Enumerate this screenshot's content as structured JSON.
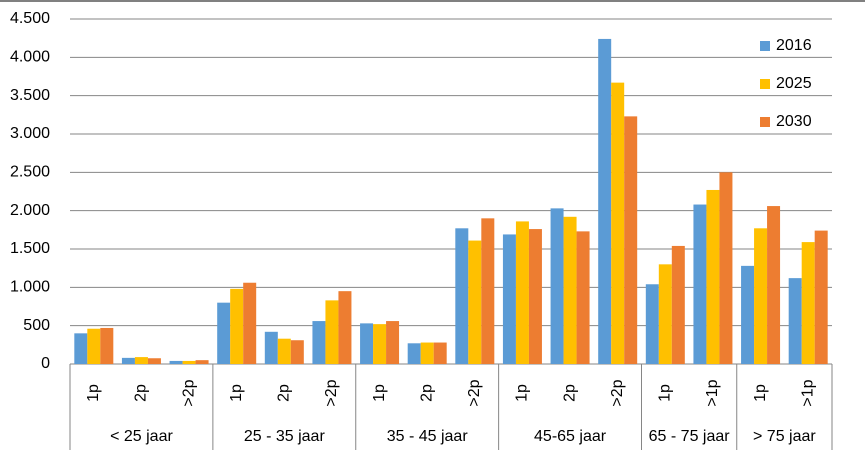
{
  "chart_data": {
    "type": "bar",
    "category_groups": [
      {
        "label": "< 25 jaar",
        "categories": [
          "1p",
          "2p",
          ">2p"
        ]
      },
      {
        "label": "25 - 35 jaar",
        "categories": [
          "1p",
          "2p",
          ">2p"
        ]
      },
      {
        "label": "35 - 45 jaar",
        "categories": [
          "1p",
          "2p",
          ">2p"
        ]
      },
      {
        "label": "45-65 jaar",
        "categories": [
          "1p",
          "2p",
          ">2p"
        ]
      },
      {
        "label": "65 - 75 jaar",
        "categories": [
          "1p",
          ">1p"
        ]
      },
      {
        "label": "> 75 jaar",
        "categories": [
          "1p",
          ">1p"
        ]
      }
    ],
    "series": [
      {
        "name": "2016",
        "color": "#5b9bd5",
        "values": [
          400,
          80,
          40,
          800,
          420,
          560,
          530,
          270,
          1770,
          1690,
          2030,
          4240,
          1040,
          2080,
          1280,
          1120
        ]
      },
      {
        "name": "2025",
        "color": "#ffc000",
        "values": [
          460,
          90,
          40,
          980,
          330,
          830,
          520,
          280,
          1610,
          1860,
          1920,
          3670,
          1300,
          2270,
          1770,
          1590
        ]
      },
      {
        "name": "2030",
        "color": "#ed7d31",
        "values": [
          470,
          75,
          50,
          1060,
          310,
          950,
          560,
          280,
          1900,
          1760,
          1730,
          3230,
          1540,
          2500,
          2060,
          1740
        ]
      }
    ],
    "ylim": [
      0,
      4500
    ],
    "yticks": [
      0,
      {
        "value": 500,
        "label": "500"
      },
      {
        "value": 1000,
        "label": "1.000"
      },
      {
        "value": 1500,
        "label": "1.500"
      },
      {
        "value": 2000,
        "label": "2.000"
      },
      {
        "value": 2500,
        "label": "2.500"
      },
      {
        "value": 3000,
        "label": "3.000"
      },
      {
        "value": 3500,
        "label": "3.500"
      },
      {
        "value": 4000,
        "label": "4.000"
      },
      {
        "value": 4500,
        "label": "4.500"
      }
    ],
    "grid": true,
    "legend": "right"
  }
}
